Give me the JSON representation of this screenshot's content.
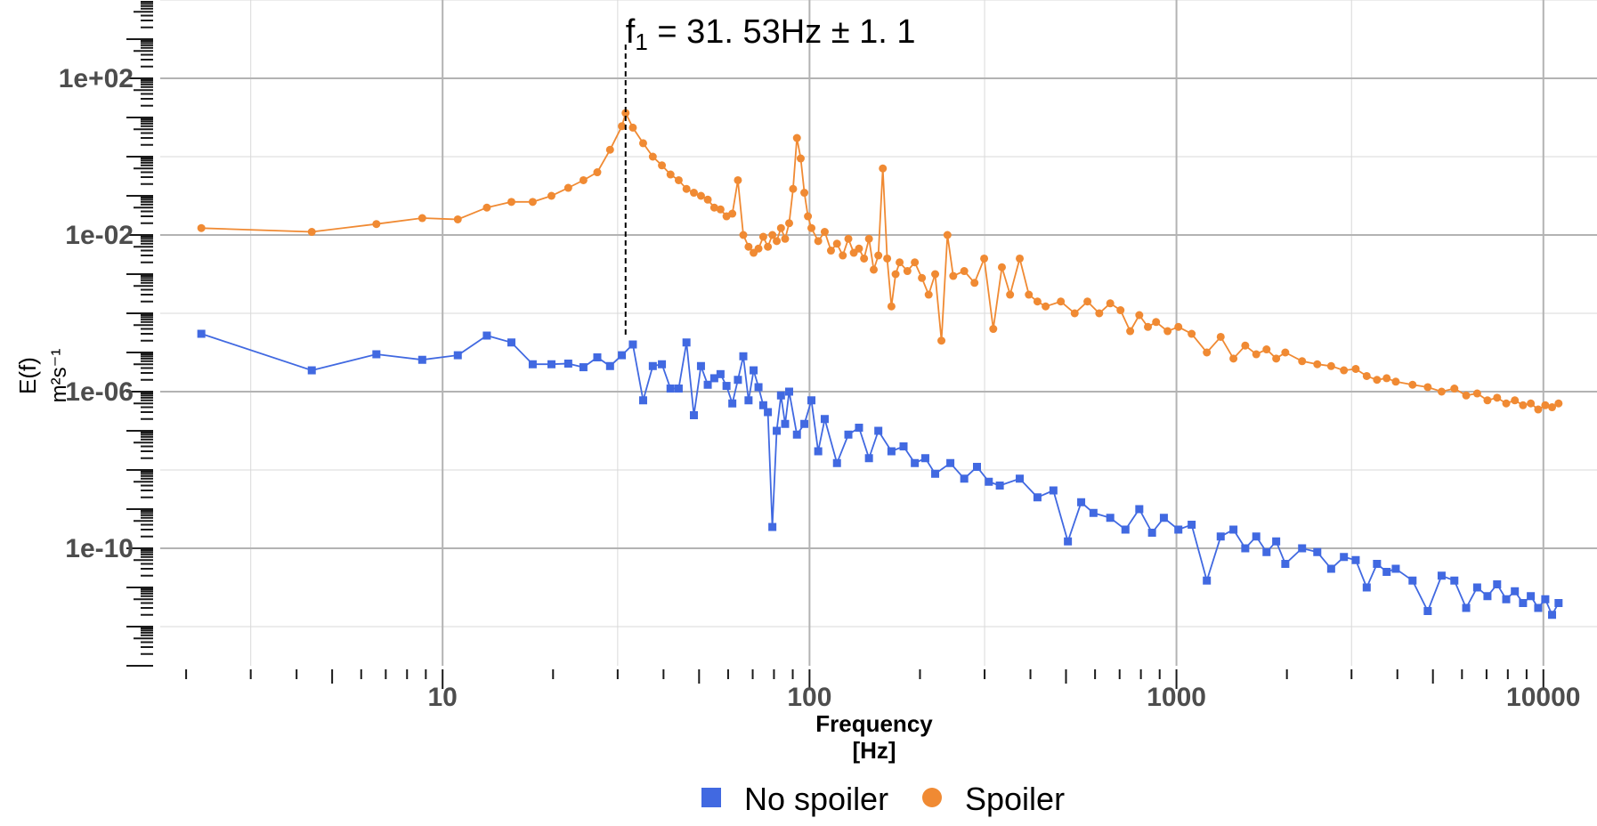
{
  "chart_data": {
    "type": "line",
    "x_scale": "log",
    "y_scale": "log",
    "xlim": [
      1.7,
      14000
    ],
    "ylim": [
      1e-13,
      10000.0
    ],
    "x_ticks": [
      {
        "value": 10,
        "label": "10"
      },
      {
        "value": 100,
        "label": "100"
      },
      {
        "value": 1000,
        "label": "1000"
      },
      {
        "value": 10000,
        "label": "10000"
      }
    ],
    "y_ticks": [
      {
        "value": 100.0,
        "label": "1e+02"
      },
      {
        "value": 0.01,
        "label": "1e-02"
      },
      {
        "value": 1e-06,
        "label": "1e-06"
      },
      {
        "value": 1e-10,
        "label": "1e-10"
      }
    ],
    "xlabel_line1": "Frequency",
    "xlabel_line2": "[Hz]",
    "ylabel_line1": "E(f)",
    "ylabel_line2": "m²s⁻¹",
    "grid": true,
    "legend_position": "bottom",
    "annotation": {
      "x": 31.53,
      "text_prefix": "f",
      "text_sub": "1",
      "text_rest": " = 31. 53Hz ± 1. 1"
    },
    "series": [
      {
        "name": "No spoiler",
        "color": "#4169e1",
        "marker": "square",
        "points": [
          [
            2.2,
            3e-05
          ],
          [
            4.4,
            3.5e-06
          ],
          [
            6.6,
            9e-06
          ],
          [
            8.8,
            6.5e-06
          ],
          [
            11.0,
            8.5e-06
          ],
          [
            13.2,
            2.7e-05
          ],
          [
            15.4,
            1.8e-05
          ],
          [
            17.6,
            5e-06
          ],
          [
            19.8,
            5e-06
          ],
          [
            22.0,
            5.2e-06
          ],
          [
            24.2,
            4.2e-06
          ],
          [
            26.4,
            7.5e-06
          ],
          [
            28.6,
            4.5e-06
          ],
          [
            30.8,
            8.5e-06
          ],
          [
            33.0,
            1.6e-05
          ],
          [
            35.2,
            6e-07
          ],
          [
            37.4,
            4.5e-06
          ],
          [
            39.6,
            5e-06
          ],
          [
            41.8,
            1.2e-06
          ],
          [
            44.0,
            1.2e-06
          ],
          [
            46.2,
            1.8e-05
          ],
          [
            48.4,
            2.5e-07
          ],
          [
            50.6,
            4.5e-06
          ],
          [
            52.8,
            1.5e-06
          ],
          [
            55.0,
            2.2e-06
          ],
          [
            57.2,
            2.8e-06
          ],
          [
            59.4,
            1.4e-06
          ],
          [
            61.6,
            5e-07
          ],
          [
            63.8,
            2e-06
          ],
          [
            66.0,
            8e-06
          ],
          [
            68.2,
            6e-07
          ],
          [
            70.4,
            3.5e-06
          ],
          [
            72.6,
            1.3e-06
          ],
          [
            74.8,
            4.5e-07
          ],
          [
            77.0,
            3e-07
          ],
          [
            79.2,
            3.5e-10
          ],
          [
            81.4,
            1e-07
          ],
          [
            83.6,
            8e-07
          ],
          [
            85.8,
            1.5e-07
          ],
          [
            88.0,
            1e-06
          ],
          [
            92.4,
            8e-08
          ],
          [
            96.8,
            1.5e-07
          ],
          [
            101.2,
            6e-07
          ],
          [
            105.6,
            3e-08
          ],
          [
            110.0,
            2e-07
          ],
          [
            118.8,
            1.5e-08
          ],
          [
            127.6,
            8e-08
          ],
          [
            136.4,
            1.2e-07
          ],
          [
            145.2,
            2e-08
          ],
          [
            154.0,
            1e-07
          ],
          [
            167.2,
            3e-08
          ],
          [
            180.4,
            4e-08
          ],
          [
            193.6,
            1.5e-08
          ],
          [
            206.8,
            2e-08
          ],
          [
            220.0,
            8e-09
          ],
          [
            242.0,
            1.5e-08
          ],
          [
            264.0,
            6e-09
          ],
          [
            286.0,
            1.2e-08
          ],
          [
            308.0,
            5e-09
          ],
          [
            330.0,
            4e-09
          ],
          [
            374.0,
            6e-09
          ],
          [
            418.0,
            2e-09
          ],
          [
            462.0,
            3e-09
          ],
          [
            506.0,
            1.5e-10
          ],
          [
            550.0,
            1.5e-09
          ],
          [
            594.0,
            8e-10
          ],
          [
            660.0,
            6e-10
          ],
          [
            726.0,
            3e-10
          ],
          [
            792.0,
            1e-09
          ],
          [
            858.0,
            2.5e-10
          ],
          [
            924.0,
            6e-10
          ],
          [
            1012.0,
            3e-10
          ],
          [
            1100.0,
            4e-10
          ],
          [
            1210.0,
            1.5e-11
          ],
          [
            1320.0,
            2e-10
          ],
          [
            1430.0,
            3e-10
          ],
          [
            1540.0,
            1e-10
          ],
          [
            1650.0,
            2e-10
          ],
          [
            1760.0,
            8e-11
          ],
          [
            1870.0,
            1.5e-10
          ],
          [
            1980.0,
            4e-11
          ],
          [
            2200.0,
            1e-10
          ],
          [
            2420.0,
            8e-11
          ],
          [
            2640.0,
            3e-11
          ],
          [
            2860.0,
            6e-11
          ],
          [
            3080.0,
            5e-11
          ],
          [
            3300.0,
            1e-11
          ],
          [
            3520.0,
            4e-11
          ],
          [
            3740.0,
            2.5e-11
          ],
          [
            3960.0,
            3e-11
          ],
          [
            4400.0,
            1.5e-11
          ],
          [
            4840.0,
            2.5e-12
          ],
          [
            5280.0,
            2e-11
          ],
          [
            5720.0,
            1.5e-11
          ],
          [
            6160.0,
            3e-12
          ],
          [
            6600.0,
            1e-11
          ],
          [
            7040.0,
            6e-12
          ],
          [
            7480.0,
            1.2e-11
          ],
          [
            7920.0,
            5e-12
          ],
          [
            8360.0,
            8e-12
          ],
          [
            8800.0,
            4e-12
          ],
          [
            9240.0,
            6e-12
          ],
          [
            9680.0,
            3e-12
          ],
          [
            10120.0,
            5e-12
          ],
          [
            10560.0,
            2e-12
          ],
          [
            11000.0,
            4e-12
          ]
        ]
      },
      {
        "name": "Spoiler",
        "color": "#f08a33",
        "marker": "circle",
        "points": [
          [
            2.2,
            0.015
          ],
          [
            4.4,
            0.012
          ],
          [
            6.6,
            0.019
          ],
          [
            8.8,
            0.027
          ],
          [
            11.0,
            0.025
          ],
          [
            13.2,
            0.05
          ],
          [
            15.4,
            0.07
          ],
          [
            17.6,
            0.07
          ],
          [
            19.8,
            0.1
          ],
          [
            22.0,
            0.16
          ],
          [
            24.2,
            0.25
          ],
          [
            26.4,
            0.4
          ],
          [
            28.6,
            1.5
          ],
          [
            30.8,
            6.0
          ],
          [
            31.53,
            13.0
          ],
          [
            33.0,
            5.5
          ],
          [
            35.2,
            2.2
          ],
          [
            37.4,
            1.0
          ],
          [
            39.6,
            0.6
          ],
          [
            41.8,
            0.35
          ],
          [
            44.0,
            0.25
          ],
          [
            46.2,
            0.15
          ],
          [
            48.4,
            0.12
          ],
          [
            50.6,
            0.1
          ],
          [
            52.8,
            0.08
          ],
          [
            55.0,
            0.05
          ],
          [
            57.2,
            0.045
          ],
          [
            59.4,
            0.03
          ],
          [
            61.6,
            0.035
          ],
          [
            63.8,
            0.25
          ],
          [
            66.0,
            0.01
          ],
          [
            68.2,
            0.005
          ],
          [
            70.4,
            0.0035
          ],
          [
            72.6,
            0.0045
          ],
          [
            74.8,
            0.009
          ],
          [
            77.0,
            0.005
          ],
          [
            79.2,
            0.01
          ],
          [
            81.4,
            0.007
          ],
          [
            83.6,
            0.015
          ],
          [
            85.8,
            0.008
          ],
          [
            88.0,
            0.02
          ],
          [
            90.2,
            0.15
          ],
          [
            92.4,
            3.0
          ],
          [
            94.6,
            0.9
          ],
          [
            96.8,
            0.12
          ],
          [
            99.0,
            0.03
          ],
          [
            101.2,
            0.015
          ],
          [
            105.6,
            0.007
          ],
          [
            110.0,
            0.012
          ],
          [
            114.4,
            0.004
          ],
          [
            118.8,
            0.006
          ],
          [
            123.2,
            0.003
          ],
          [
            127.6,
            0.008
          ],
          [
            132.0,
            0.0035
          ],
          [
            136.4,
            0.0045
          ],
          [
            140.8,
            0.0025
          ],
          [
            145.2,
            0.008
          ],
          [
            149.6,
            0.0013
          ],
          [
            154.0,
            0.003
          ],
          [
            158.4,
            0.5
          ],
          [
            162.8,
            0.0025
          ],
          [
            167.2,
            0.00015
          ],
          [
            171.6,
            0.001
          ],
          [
            176.0,
            0.002
          ],
          [
            184.8,
            0.0012
          ],
          [
            193.6,
            0.002
          ],
          [
            202.4,
            0.0008
          ],
          [
            211.2,
            0.0003
          ],
          [
            220.0,
            0.001
          ],
          [
            228.8,
            2e-05
          ],
          [
            237.6,
            0.01
          ],
          [
            246.4,
            0.0009
          ],
          [
            264.0,
            0.0012
          ],
          [
            281.6,
            0.0006
          ],
          [
            299.2,
            0.0025
          ],
          [
            316.8,
            4e-05
          ],
          [
            334.4,
            0.0015
          ],
          [
            352.0,
            0.0003
          ],
          [
            374.0,
            0.0025
          ],
          [
            396.0,
            0.0003
          ],
          [
            418.0,
            0.0002
          ],
          [
            440.0,
            0.00015
          ],
          [
            484.0,
            0.0002
          ],
          [
            528.0,
            0.0001
          ],
          [
            572.0,
            0.0002
          ],
          [
            616.0,
            0.0001
          ],
          [
            660.0,
            0.00018
          ],
          [
            704.0,
            0.00012
          ],
          [
            748.0,
            3.5e-05
          ],
          [
            792.0,
            9e-05
          ],
          [
            836.0,
            4.5e-05
          ],
          [
            880.0,
            6e-05
          ],
          [
            946.0,
            3.5e-05
          ],
          [
            1012.0,
            4.5e-05
          ],
          [
            1100.0,
            3e-05
          ],
          [
            1210.0,
            1e-05
          ],
          [
            1320.0,
            2.5e-05
          ],
          [
            1430.0,
            7e-06
          ],
          [
            1540.0,
            1.5e-05
          ],
          [
            1650.0,
            9e-06
          ],
          [
            1760.0,
            1.2e-05
          ],
          [
            1870.0,
            7e-06
          ],
          [
            1980.0,
            1e-05
          ],
          [
            2200.0,
            6e-06
          ],
          [
            2420.0,
            5e-06
          ],
          [
            2640.0,
            4.5e-06
          ],
          [
            2860.0,
            3.5e-06
          ],
          [
            3080.0,
            3.8e-06
          ],
          [
            3300.0,
            2.5e-06
          ],
          [
            3520.0,
            2e-06
          ],
          [
            3740.0,
            2.2e-06
          ],
          [
            3960.0,
            1.8e-06
          ],
          [
            4400.0,
            1.5e-06
          ],
          [
            4840.0,
            1.3e-06
          ],
          [
            5280.0,
            1e-06
          ],
          [
            5720.0,
            1.2e-06
          ],
          [
            6160.0,
            8e-07
          ],
          [
            6600.0,
            9e-07
          ],
          [
            7040.0,
            6e-07
          ],
          [
            7480.0,
            7e-07
          ],
          [
            7920.0,
            5e-07
          ],
          [
            8360.0,
            6e-07
          ],
          [
            8800.0,
            4.5e-07
          ],
          [
            9240.0,
            5e-07
          ],
          [
            9680.0,
            3.5e-07
          ],
          [
            10120.0,
            4.5e-07
          ],
          [
            10560.0,
            4e-07
          ],
          [
            11000.0,
            5e-07
          ]
        ]
      }
    ]
  }
}
